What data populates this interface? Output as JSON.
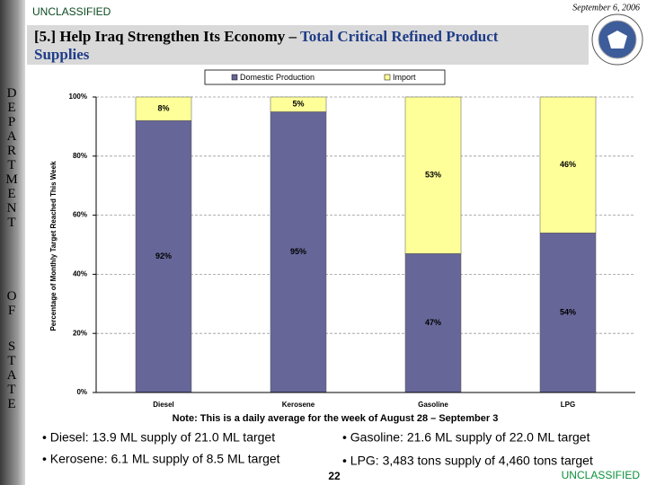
{
  "classification_top": "UNCLASSIFIED",
  "date": "September 6, 2006",
  "title_prefix": "[5.] Help Iraq Strengthen Its Economy – ",
  "title_highlight": "Total Critical Refined Product",
  "title_line2": "Supplies",
  "sidebar_words": [
    "DEPARTMENT",
    "OF",
    "STATE"
  ],
  "bullets": [
    "• Diesel: 13.9 ML supply of 21.0 ML target",
    "• Kerosene: 6.1 ML supply of 8.5 ML target",
    "• Gasoline: 21.6 ML supply of 22.0 ML target",
    "• LPG: 3,483 tons supply of 4,460 tons target"
  ],
  "page_number": "22",
  "classification_bottom": "UNCLASSIFIED",
  "chart_data": {
    "type": "stacked_bar",
    "y_label": "Percentage of Monthly Target Reached This Week",
    "note": "Note: This is a daily average for the week of August 28 – September 3",
    "categories": [
      "Diesel",
      "Kerosene",
      "Gasoline",
      "LPG"
    ],
    "series": [
      {
        "name": "Domestic Production",
        "color": "#666699",
        "values": [
          92,
          95,
          47,
          54
        ],
        "value_labels": [
          "92%",
          "95%",
          "47%",
          "54%"
        ]
      },
      {
        "name": "Import",
        "color": "#ffff99",
        "values": [
          8,
          5,
          53,
          46
        ],
        "value_labels": [
          "8%",
          "5%",
          "53%",
          "46%"
        ]
      }
    ],
    "ylim": [
      0,
      100
    ],
    "yticks": [
      {
        "value": 0,
        "label": "0%"
      },
      {
        "value": 20,
        "label": "20%"
      },
      {
        "value": 40,
        "label": "40%"
      },
      {
        "value": 60,
        "label": "60%"
      },
      {
        "value": 80,
        "label": "80%"
      },
      {
        "value": 100,
        "label": "100%"
      }
    ],
    "grid": true
  }
}
